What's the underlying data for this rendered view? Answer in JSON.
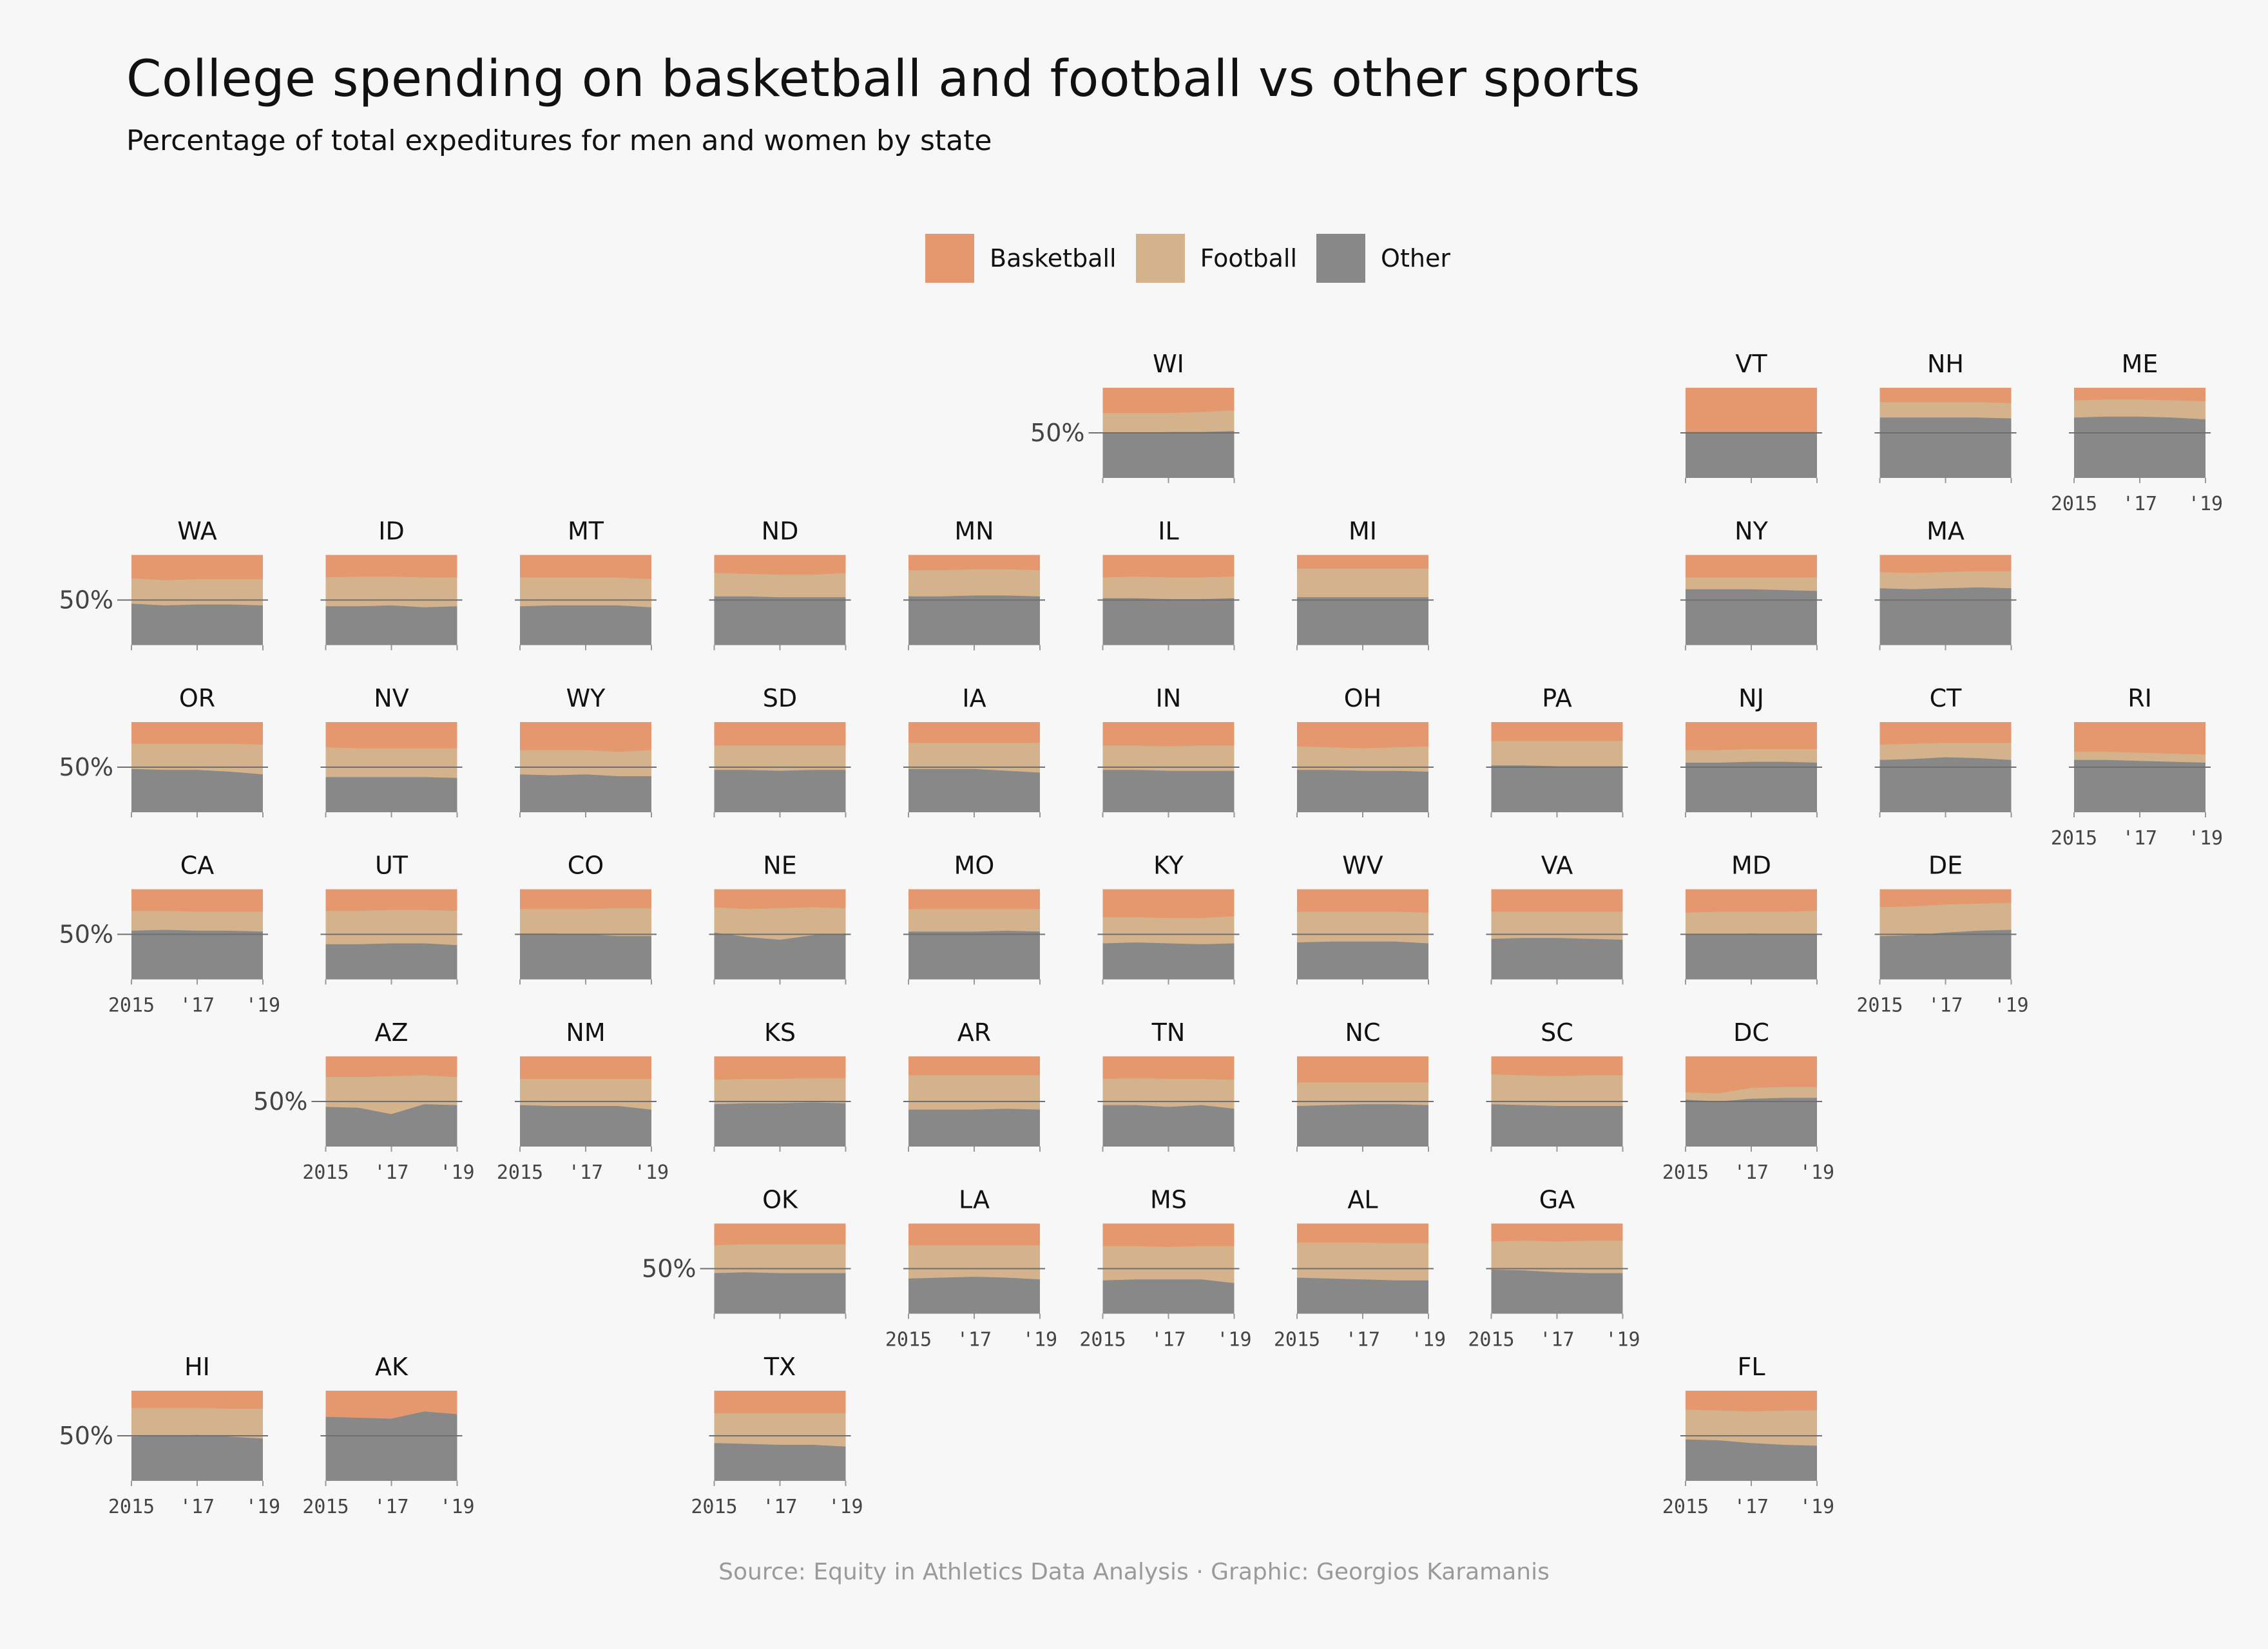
{
  "title": "College spending on basketball and football vs other sports",
  "subtitle": "Percentage of total expeditures for men and women by state",
  "caption": "Source: Equity in Athletics Data Analysis · Graphic: Georgios Karamanis",
  "legend": [
    {
      "name": "Basketball",
      "color": "#e5986d"
    },
    {
      "name": "Football",
      "color": "#d4b38c"
    },
    {
      "name": "Other",
      "color": "#888888"
    }
  ],
  "chart_data": {
    "type": "area",
    "layout": "small-multiples geofacet (stacked area per state)",
    "x": [
      2015,
      2016,
      2017,
      2018,
      2019
    ],
    "x_tick_labels": [
      "2015",
      "'17",
      "'19"
    ],
    "y_tick_label": "50%",
    "ylim": [
      0,
      100
    ],
    "reference_line": 50,
    "series_order": [
      "Other",
      "Football",
      "Basketball"
    ],
    "states": [
      {
        "state": "WI",
        "row": 0,
        "col": 5,
        "other": [
          50,
          50,
          51,
          51,
          52
        ],
        "football": [
          22,
          22,
          21,
          22,
          23
        ]
      },
      {
        "state": "VT",
        "row": 0,
        "col": 8,
        "other": [
          51,
          51,
          51,
          51,
          51
        ],
        "football": [
          0,
          0,
          0,
          0,
          0
        ]
      },
      {
        "state": "NH",
        "row": 0,
        "col": 9,
        "other": [
          67,
          67,
          67,
          67,
          66
        ],
        "football": [
          17,
          17,
          17,
          17,
          17
        ]
      },
      {
        "state": "ME",
        "row": 0,
        "col": 10,
        "other": [
          67,
          68,
          68,
          67,
          65
        ],
        "football": [
          19,
          19,
          19,
          19,
          20
        ]
      },
      {
        "state": "WA",
        "row": 1,
        "col": 0,
        "other": [
          46,
          44,
          45,
          45,
          44
        ],
        "football": [
          28,
          28,
          28,
          28,
          29
        ]
      },
      {
        "state": "ID",
        "row": 1,
        "col": 1,
        "other": [
          43,
          43,
          44,
          42,
          43
        ],
        "football": [
          32,
          33,
          32,
          33,
          32
        ]
      },
      {
        "state": "MT",
        "row": 1,
        "col": 2,
        "other": [
          43,
          44,
          44,
          44,
          42
        ],
        "football": [
          32,
          31,
          31,
          31,
          31
        ]
      },
      {
        "state": "ND",
        "row": 1,
        "col": 3,
        "other": [
          54,
          54,
          53,
          53,
          53
        ],
        "football": [
          26,
          25,
          25,
          25,
          27
        ]
      },
      {
        "state": "MN",
        "row": 1,
        "col": 4,
        "other": [
          54,
          54,
          55,
          55,
          54
        ],
        "football": [
          29,
          29,
          29,
          29,
          29
        ]
      },
      {
        "state": "IL",
        "row": 1,
        "col": 5,
        "other": [
          52,
          52,
          51,
          51,
          52
        ],
        "football": [
          23,
          24,
          24,
          24,
          24
        ]
      },
      {
        "state": "MI",
        "row": 1,
        "col": 6,
        "other": [
          53,
          53,
          53,
          53,
          53
        ],
        "football": [
          32,
          32,
          32,
          32,
          32
        ]
      },
      {
        "state": "NY",
        "row": 1,
        "col": 8,
        "other": [
          62,
          62,
          62,
          61,
          60
        ],
        "football": [
          13,
          13,
          13,
          14,
          15
        ]
      },
      {
        "state": "MA",
        "row": 1,
        "col": 9,
        "other": [
          63,
          62,
          63,
          64,
          63
        ],
        "football": [
          18,
          18,
          18,
          18,
          19
        ]
      },
      {
        "state": "OR",
        "row": 2,
        "col": 0,
        "other": [
          48,
          47,
          47,
          45,
          42
        ],
        "football": [
          28,
          29,
          29,
          31,
          33
        ]
      },
      {
        "state": "NV",
        "row": 2,
        "col": 1,
        "other": [
          39,
          39,
          39,
          39,
          38
        ],
        "football": [
          33,
          32,
          32,
          32,
          33
        ]
      },
      {
        "state": "WY",
        "row": 2,
        "col": 2,
        "other": [
          42,
          41,
          42,
          40,
          40
        ],
        "football": [
          27,
          28,
          27,
          27,
          29
        ]
      },
      {
        "state": "SD",
        "row": 2,
        "col": 3,
        "other": [
          47,
          47,
          46,
          47,
          47
        ],
        "football": [
          27,
          27,
          28,
          27,
          27
        ]
      },
      {
        "state": "IA",
        "row": 2,
        "col": 4,
        "other": [
          48,
          48,
          48,
          46,
          44
        ],
        "football": [
          29,
          29,
          29,
          31,
          33
        ]
      },
      {
        "state": "IN",
        "row": 2,
        "col": 5,
        "other": [
          47,
          47,
          46,
          46,
          46
        ],
        "football": [
          27,
          27,
          27,
          28,
          28
        ]
      },
      {
        "state": "OH",
        "row": 2,
        "col": 6,
        "other": [
          47,
          47,
          46,
          46,
          45
        ],
        "football": [
          26,
          25,
          25,
          26,
          28
        ]
      },
      {
        "state": "PA",
        "row": 2,
        "col": 7,
        "other": [
          52,
          52,
          51,
          51,
          51
        ],
        "football": [
          27,
          27,
          28,
          28,
          28
        ]
      },
      {
        "state": "NJ",
        "row": 2,
        "col": 8,
        "other": [
          55,
          55,
          56,
          56,
          55
        ],
        "football": [
          14,
          14,
          14,
          14,
          15
        ]
      },
      {
        "state": "CT",
        "row": 2,
        "col": 9,
        "other": [
          58,
          59,
          61,
          60,
          58
        ],
        "football": [
          17,
          17,
          16,
          17,
          19
        ]
      },
      {
        "state": "RI",
        "row": 2,
        "col": 10,
        "other": [
          58,
          58,
          57,
          56,
          55
        ],
        "football": [
          9,
          9,
          9,
          9,
          9
        ]
      },
      {
        "state": "CA",
        "row": 3,
        "col": 0,
        "other": [
          54,
          55,
          54,
          54,
          53
        ],
        "football": [
          22,
          21,
          21,
          21,
          22
        ]
      },
      {
        "state": "UT",
        "row": 3,
        "col": 1,
        "other": [
          39,
          39,
          40,
          40,
          38
        ],
        "football": [
          37,
          37,
          37,
          37,
          38
        ]
      },
      {
        "state": "CO",
        "row": 3,
        "col": 2,
        "other": [
          51,
          51,
          50,
          48,
          48
        ],
        "football": [
          27,
          27,
          28,
          31,
          31
        ]
      },
      {
        "state": "NE",
        "row": 3,
        "col": 3,
        "other": [
          52,
          47,
          44,
          49,
          51
        ],
        "football": [
          28,
          31,
          35,
          31,
          28
        ]
      },
      {
        "state": "MO",
        "row": 3,
        "col": 4,
        "other": [
          53,
          53,
          53,
          54,
          53
        ],
        "football": [
          25,
          25,
          25,
          24,
          25
        ]
      },
      {
        "state": "KY",
        "row": 3,
        "col": 5,
        "other": [
          40,
          41,
          40,
          39,
          40
        ],
        "football": [
          29,
          28,
          28,
          29,
          30
        ]
      },
      {
        "state": "WV",
        "row": 3,
        "col": 6,
        "other": [
          41,
          42,
          42,
          42,
          40
        ],
        "football": [
          34,
          33,
          33,
          33,
          34
        ]
      },
      {
        "state": "VA",
        "row": 3,
        "col": 7,
        "other": [
          45,
          46,
          46,
          45,
          44
        ],
        "football": [
          30,
          29,
          29,
          30,
          31
        ]
      },
      {
        "state": "MD",
        "row": 3,
        "col": 8,
        "other": [
          50,
          50,
          51,
          50,
          50
        ],
        "football": [
          24,
          25,
          24,
          25,
          26
        ]
      },
      {
        "state": "DE",
        "row": 3,
        "col": 9,
        "other": [
          48,
          49,
          52,
          54,
          55
        ],
        "football": [
          32,
          32,
          31,
          30,
          30
        ]
      },
      {
        "state": "AZ",
        "row": 4,
        "col": 1,
        "other": [
          44,
          43,
          36,
          47,
          46
        ],
        "football": [
          33,
          34,
          42,
          32,
          31
        ]
      },
      {
        "state": "NM",
        "row": 4,
        "col": 2,
        "other": [
          46,
          45,
          45,
          45,
          41
        ],
        "football": [
          29,
          30,
          30,
          30,
          34
        ]
      },
      {
        "state": "KS",
        "row": 4,
        "col": 3,
        "other": [
          47,
          48,
          48,
          49,
          48
        ],
        "football": [
          27,
          27,
          27,
          27,
          28
        ]
      },
      {
        "state": "AR",
        "row": 4,
        "col": 4,
        "other": [
          41,
          41,
          41,
          42,
          41
        ],
        "football": [
          38,
          38,
          38,
          37,
          38
        ]
      },
      {
        "state": "TN",
        "row": 4,
        "col": 5,
        "other": [
          46,
          46,
          44,
          46,
          42
        ],
        "football": [
          29,
          30,
          31,
          29,
          32
        ]
      },
      {
        "state": "NC",
        "row": 4,
        "col": 6,
        "other": [
          45,
          46,
          47,
          47,
          46
        ],
        "football": [
          26,
          25,
          24,
          24,
          25
        ]
      },
      {
        "state": "SC",
        "row": 4,
        "col": 7,
        "other": [
          47,
          46,
          45,
          45,
          45
        ],
        "football": [
          33,
          33,
          33,
          34,
          34
        ]
      },
      {
        "state": "DC",
        "row": 4,
        "col": 8,
        "other": [
          52,
          50,
          53,
          54,
          54
        ],
        "football": [
          8,
          9,
          12,
          12,
          12
        ]
      },
      {
        "state": "OK",
        "row": 5,
        "col": 3,
        "other": [
          45,
          46,
          45,
          45,
          45
        ],
        "football": [
          31,
          31,
          32,
          32,
          32
        ]
      },
      {
        "state": "LA",
        "row": 5,
        "col": 4,
        "other": [
          39,
          40,
          41,
          40,
          38
        ],
        "football": [
          37,
          36,
          35,
          36,
          38
        ]
      },
      {
        "state": "MS",
        "row": 5,
        "col": 5,
        "other": [
          37,
          38,
          38,
          38,
          34
        ],
        "football": [
          38,
          37,
          36,
          37,
          41
        ]
      },
      {
        "state": "AL",
        "row": 5,
        "col": 6,
        "other": [
          40,
          39,
          38,
          37,
          37
        ],
        "football": [
          39,
          40,
          41,
          41,
          41
        ]
      },
      {
        "state": "GA",
        "row": 5,
        "col": 7,
        "other": [
          49,
          48,
          46,
          45,
          45
        ],
        "football": [
          31,
          33,
          34,
          36,
          36
        ]
      },
      {
        "state": "HI",
        "row": 6,
        "col": 0,
        "other": [
          49,
          50,
          51,
          49,
          47
        ],
        "football": [
          32,
          31,
          30,
          31,
          33
        ]
      },
      {
        "state": "AK",
        "row": 6,
        "col": 1,
        "other": [
          71,
          70,
          69,
          77,
          74
        ],
        "football": [
          0,
          0,
          0,
          0,
          0
        ]
      },
      {
        "state": "TX",
        "row": 6,
        "col": 3,
        "other": [
          42,
          41,
          40,
          40,
          38
        ],
        "football": [
          33,
          34,
          35,
          35,
          37
        ]
      },
      {
        "state": "FL",
        "row": 6,
        "col": 8,
        "other": [
          46,
          45,
          42,
          40,
          39
        ],
        "football": [
          33,
          33,
          35,
          38,
          39
        ]
      }
    ]
  }
}
